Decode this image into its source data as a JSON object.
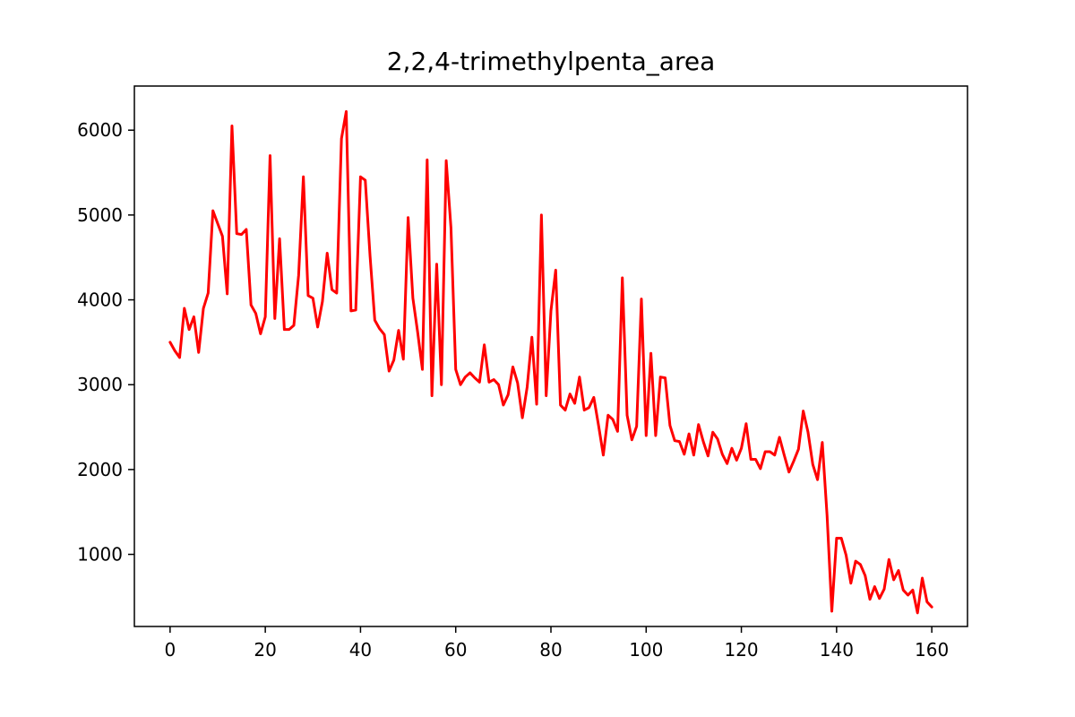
{
  "chart_data": {
    "type": "line",
    "title": "2,2,4-trimethylpenta_area",
    "xlabel": "",
    "ylabel": "",
    "xlim": [
      -7.5,
      167.5
    ],
    "ylim": [
      150,
      6520
    ],
    "xticks": [
      0,
      20,
      40,
      60,
      80,
      100,
      120,
      140,
      160
    ],
    "yticks": [
      1000,
      2000,
      3000,
      4000,
      5000,
      6000
    ],
    "grid": false,
    "legend": "none",
    "series": [
      {
        "color": "#ff0000",
        "x": [
          0,
          1,
          2,
          3,
          4,
          5,
          6,
          7,
          8,
          9,
          10,
          11,
          12,
          13,
          14,
          15,
          16,
          17,
          18,
          19,
          20,
          21,
          22,
          23,
          24,
          25,
          26,
          27,
          28,
          29,
          30,
          31,
          32,
          33,
          34,
          35,
          36,
          37,
          38,
          39,
          40,
          41,
          42,
          43,
          44,
          45,
          46,
          47,
          48,
          49,
          50,
          51,
          52,
          53,
          54,
          55,
          56,
          57,
          58,
          59,
          60,
          61,
          62,
          63,
          64,
          65,
          66,
          67,
          68,
          69,
          70,
          71,
          72,
          73,
          74,
          75,
          76,
          77,
          78,
          79,
          80,
          81,
          82,
          83,
          84,
          85,
          86,
          87,
          88,
          89,
          90,
          91,
          92,
          93,
          94,
          95,
          96,
          97,
          98,
          99,
          100,
          101,
          102,
          103,
          104,
          105,
          106,
          107,
          108,
          109,
          110,
          111,
          112,
          113,
          114,
          115,
          116,
          117,
          118,
          119,
          120,
          121,
          122,
          123,
          124,
          125,
          126,
          127,
          128,
          129,
          130,
          131,
          132,
          133,
          134,
          135,
          136,
          137,
          138,
          139,
          140,
          141,
          142,
          143,
          144,
          145,
          146,
          147,
          148,
          149,
          150,
          151,
          152,
          153,
          154,
          155,
          156,
          157,
          158,
          159,
          160
        ],
        "y": [
          3500,
          3400,
          3320,
          3900,
          3650,
          3800,
          3380,
          3900,
          4080,
          5050,
          4900,
          4750,
          4070,
          6050,
          4780,
          4770,
          4830,
          3940,
          3840,
          3600,
          3800,
          5700,
          3780,
          4720,
          3650,
          3650,
          3700,
          4290,
          5450,
          4050,
          4020,
          3680,
          3980,
          4550,
          4120,
          4080,
          5900,
          6220,
          3870,
          3880,
          5450,
          5410,
          4520,
          3760,
          3660,
          3590,
          3160,
          3290,
          3640,
          3300,
          4970,
          4020,
          3620,
          3180,
          5650,
          2870,
          4420,
          3000,
          5640,
          4850,
          3180,
          3000,
          3090,
          3140,
          3080,
          3030,
          3470,
          3030,
          3060,
          3000,
          2760,
          2880,
          3210,
          3020,
          2610,
          2970,
          3560,
          2770,
          5000,
          2870,
          3870,
          4350,
          2760,
          2700,
          2890,
          2780,
          3090,
          2700,
          2730,
          2850,
          2520,
          2170,
          2640,
          2590,
          2450,
          4260,
          2640,
          2350,
          2510,
          4010,
          2400,
          3370,
          2400,
          3090,
          3080,
          2520,
          2340,
          2330,
          2180,
          2420,
          2170,
          2530,
          2330,
          2160,
          2440,
          2360,
          2180,
          2070,
          2250,
          2110,
          2250,
          2540,
          2120,
          2120,
          2010,
          2210,
          2210,
          2170,
          2380,
          2170,
          1970,
          2100,
          2240,
          2690,
          2440,
          2060,
          1880,
          2320,
          1460,
          330,
          1190,
          1190,
          990,
          660,
          920,
          880,
          750,
          470,
          620,
          480,
          590,
          940,
          700,
          810,
          580,
          520,
          580,
          310,
          720,
          440,
          380
        ]
      }
    ]
  }
}
